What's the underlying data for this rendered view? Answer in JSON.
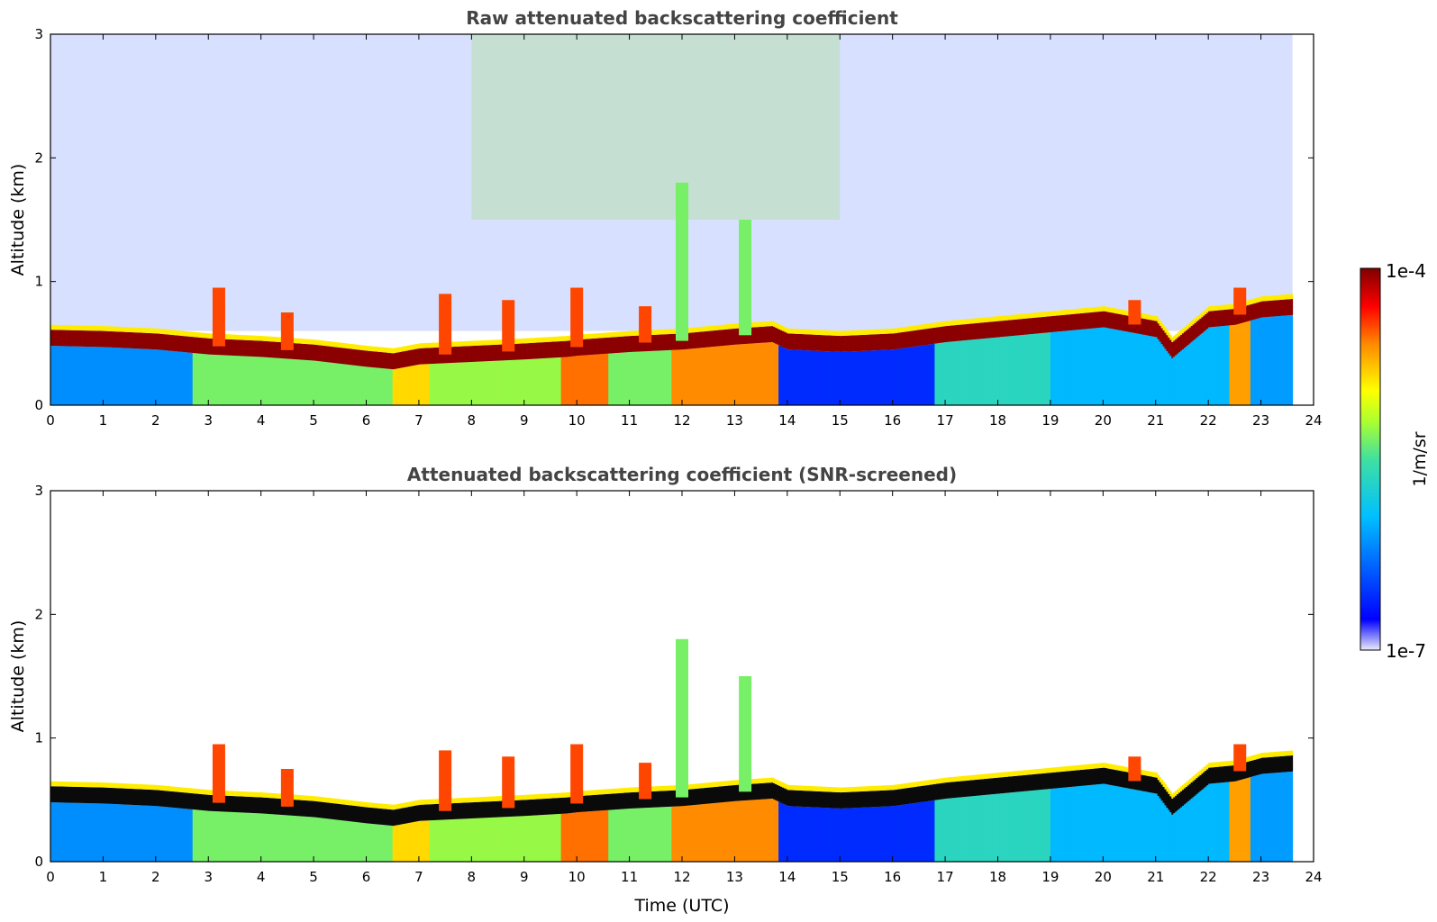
{
  "chart_data": [
    {
      "type": "heatmap",
      "title": "Raw attenuated backscattering coefficient",
      "xlabel": "",
      "ylabel": "Altitude (km)",
      "xlim": [
        0,
        24
      ],
      "ylim": [
        0,
        3
      ],
      "xticks": [
        "0",
        "1",
        "2",
        "3",
        "4",
        "5",
        "6",
        "7",
        "8",
        "9",
        "10",
        "11",
        "12",
        "13",
        "14",
        "15",
        "16",
        "17",
        "18",
        "19",
        "20",
        "21",
        "22",
        "23",
        "24"
      ],
      "yticks": [
        "0",
        "1",
        "2",
        "3"
      ],
      "screened": false,
      "data_end_hour": 23.6,
      "layer_top_km": {
        "time": [
          0,
          1,
          2,
          3,
          4,
          5,
          6,
          6.5,
          7,
          8,
          9,
          9.8,
          10,
          11,
          12,
          13,
          13.7,
          14,
          15,
          16,
          17,
          18,
          19,
          20,
          21,
          21.3,
          22,
          22.5,
          23,
          23.6
        ],
        "value": [
          0.55,
          0.54,
          0.52,
          0.48,
          0.46,
          0.43,
          0.38,
          0.36,
          0.4,
          0.42,
          0.44,
          0.46,
          0.47,
          0.5,
          0.52,
          0.56,
          0.58,
          0.52,
          0.5,
          0.52,
          0.58,
          0.62,
          0.66,
          0.7,
          0.62,
          0.45,
          0.7,
          0.72,
          0.78,
          0.8
        ]
      }
    },
    {
      "type": "heatmap",
      "title": "Attenuated backscattering coefficient (SNR-screened)",
      "xlabel": "Time (UTC)",
      "ylabel": "Altitude (km)",
      "xlim": [
        0,
        24
      ],
      "ylim": [
        0,
        3
      ],
      "xticks": [
        "0",
        "1",
        "2",
        "3",
        "4",
        "5",
        "6",
        "7",
        "8",
        "9",
        "10",
        "11",
        "12",
        "13",
        "14",
        "15",
        "16",
        "17",
        "18",
        "19",
        "20",
        "21",
        "22",
        "23",
        "24"
      ],
      "yticks": [
        "0",
        "1",
        "2",
        "3"
      ],
      "screened": true,
      "data_end_hour": 23.6
    }
  ],
  "colorbar": {
    "label": "1/m/sr",
    "max_label": "1e-4",
    "min_label": "1e-7",
    "range": [
      1e-07,
      0.0001
    ],
    "scale": "log",
    "colormap": [
      "#e6e6fa",
      "#0000ff",
      "#00bfff",
      "#40e0a0",
      "#adff2f",
      "#ffff00",
      "#ff8c00",
      "#ff0000",
      "#800000"
    ]
  }
}
